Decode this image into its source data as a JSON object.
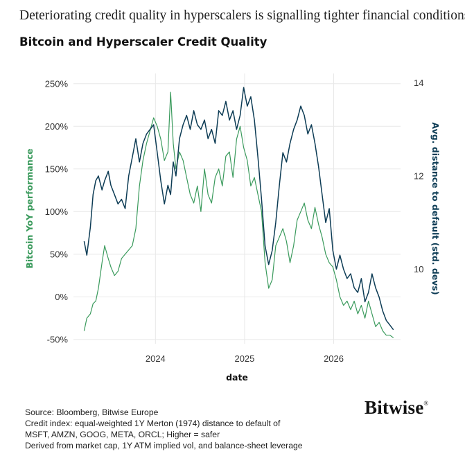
{
  "header": {
    "headline": "Deteriorating credit quality in hyperscalers is signalling tighter financial conditions",
    "chart_title": "Bitcoin and Hyperscaler Credit Quality"
  },
  "chart_data": {
    "type": "line",
    "title": "Bitcoin and Hyperscaler Credit Quality",
    "xlabel": "date",
    "ylabel_left": "Bitcoin YoY performance",
    "ylabel_right": "Avg. distance to default (std. devs)",
    "x_ticks": [
      "2024",
      "2025",
      "2026"
    ],
    "x_tick_values": [
      2024.0,
      2025.0,
      2026.0
    ],
    "xlim": [
      2023.08,
      2026.75
    ],
    "y_left_ticks": [
      "-50%",
      "0%",
      "50%",
      "100%",
      "150%",
      "200%",
      "250%"
    ],
    "y_left_tick_values": [
      -50,
      0,
      50,
      100,
      150,
      200,
      250
    ],
    "ylim_left": [
      -55,
      262
    ],
    "y_right_ticks": [
      "10",
      "12",
      "14"
    ],
    "y_right_tick_values": [
      10,
      12,
      14
    ],
    "ylim_right": [
      8.4,
      14.2
    ],
    "grid": true,
    "legend": "none",
    "colors": {
      "left_series": "#3a9a5c",
      "right_series": "#0d3c55",
      "grid": "#e8e8e8"
    },
    "series": [
      {
        "axis": "left",
        "unit": "%",
        "x": [
          2023.2,
          2023.23,
          2023.27,
          2023.3,
          2023.33,
          2023.36,
          2023.4,
          2023.43,
          2023.47,
          2023.5,
          2023.54,
          2023.58,
          2023.62,
          2023.66,
          2023.7,
          2023.74,
          2023.78,
          2023.82,
          2023.86,
          2023.9,
          2023.94,
          2023.98,
          2024.02,
          2024.06,
          2024.1,
          2024.14,
          2024.17,
          2024.2,
          2024.23,
          2024.27,
          2024.31,
          2024.35,
          2024.39,
          2024.43,
          2024.47,
          2024.51,
          2024.55,
          2024.59,
          2024.63,
          2024.67,
          2024.71,
          2024.75,
          2024.79,
          2024.83,
          2024.87,
          2024.91,
          2024.95,
          2024.99,
          2025.03,
          2025.07,
          2025.11,
          2025.15,
          2025.19,
          2025.23,
          2025.27,
          2025.31,
          2025.35,
          2025.39,
          2025.43,
          2025.47,
          2025.51,
          2025.55,
          2025.59,
          2025.63,
          2025.67,
          2025.71,
          2025.75,
          2025.79,
          2025.83,
          2025.87,
          2025.91,
          2025.95,
          2025.99,
          2026.03,
          2026.07,
          2026.11,
          2026.15,
          2026.19,
          2026.23,
          2026.27,
          2026.31,
          2026.35,
          2026.39,
          2026.43,
          2026.47,
          2026.51,
          2026.55,
          2026.59,
          2026.63,
          2026.67
        ],
        "values": [
          -40,
          -25,
          -20,
          -8,
          -5,
          10,
          40,
          60,
          45,
          35,
          25,
          30,
          45,
          50,
          55,
          60,
          80,
          130,
          160,
          180,
          195,
          210,
          200,
          185,
          160,
          170,
          240,
          180,
          150,
          170,
          160,
          140,
          120,
          110,
          130,
          100,
          150,
          120,
          110,
          140,
          150,
          130,
          165,
          170,
          140,
          185,
          200,
          175,
          160,
          130,
          140,
          120,
          100,
          40,
          10,
          20,
          60,
          70,
          80,
          65,
          40,
          60,
          90,
          100,
          110,
          90,
          80,
          105,
          85,
          70,
          50,
          40,
          35,
          20,
          0,
          -10,
          -5,
          -15,
          -5,
          -20,
          -10,
          -25,
          -5,
          -20,
          -35,
          -30,
          -40,
          -45,
          -45,
          -48
        ]
      },
      {
        "axis": "right",
        "unit": "std. devs",
        "x": [
          2023.2,
          2023.23,
          2023.27,
          2023.3,
          2023.33,
          2023.36,
          2023.4,
          2023.43,
          2023.47,
          2023.5,
          2023.54,
          2023.58,
          2023.62,
          2023.66,
          2023.7,
          2023.74,
          2023.78,
          2023.82,
          2023.86,
          2023.9,
          2023.94,
          2023.98,
          2024.02,
          2024.06,
          2024.1,
          2024.14,
          2024.17,
          2024.2,
          2024.23,
          2024.27,
          2024.31,
          2024.35,
          2024.39,
          2024.43,
          2024.47,
          2024.51,
          2024.55,
          2024.59,
          2024.63,
          2024.67,
          2024.71,
          2024.75,
          2024.79,
          2024.83,
          2024.87,
          2024.91,
          2024.95,
          2024.99,
          2025.03,
          2025.07,
          2025.11,
          2025.15,
          2025.19,
          2025.23,
          2025.27,
          2025.31,
          2025.35,
          2025.39,
          2025.43,
          2025.47,
          2025.51,
          2025.55,
          2025.59,
          2025.63,
          2025.67,
          2025.71,
          2025.75,
          2025.79,
          2025.83,
          2025.87,
          2025.91,
          2025.95,
          2025.99,
          2026.03,
          2026.07,
          2026.11,
          2026.15,
          2026.19,
          2026.23,
          2026.27,
          2026.31,
          2026.35,
          2026.39,
          2026.43,
          2026.47,
          2026.51,
          2026.55,
          2026.59,
          2026.63,
          2026.67
        ],
        "values": [
          10.6,
          10.3,
          10.9,
          11.6,
          11.9,
          12.0,
          11.7,
          11.9,
          12.1,
          11.8,
          11.6,
          11.4,
          11.5,
          11.3,
          12.0,
          12.4,
          12.8,
          12.3,
          12.7,
          12.9,
          13.0,
          13.1,
          12.5,
          11.9,
          11.4,
          11.8,
          11.6,
          12.3,
          12.0,
          12.8,
          13.1,
          13.3,
          13.0,
          13.4,
          13.1,
          13.0,
          13.2,
          12.8,
          13.0,
          12.7,
          13.4,
          13.3,
          13.6,
          13.2,
          13.4,
          13.0,
          13.3,
          13.9,
          13.5,
          13.7,
          13.2,
          12.4,
          11.5,
          10.5,
          10.1,
          10.4,
          11.0,
          11.8,
          12.5,
          12.3,
          12.7,
          13.0,
          13.2,
          13.5,
          13.3,
          12.9,
          13.1,
          12.7,
          12.2,
          11.6,
          11.0,
          11.3,
          10.4,
          10.0,
          10.3,
          10.0,
          9.8,
          9.9,
          9.6,
          9.5,
          9.8,
          9.3,
          9.5,
          9.9,
          9.6,
          9.4,
          9.1,
          8.9,
          8.8,
          8.7
        ]
      }
    ]
  },
  "footer": {
    "source_lines": [
      "Source: Bloomberg, Bitwise Europe",
      "Credit index: equal-weighted 1Y Merton (1974) distance to default of",
      "MSFT, AMZN, GOOG, META, ORCL; Higher = safer",
      "Derived from market cap, 1Y ATM implied vol, and balance-sheet leverage"
    ],
    "logo_text": "Bitwise",
    "logo_mark": "®"
  }
}
